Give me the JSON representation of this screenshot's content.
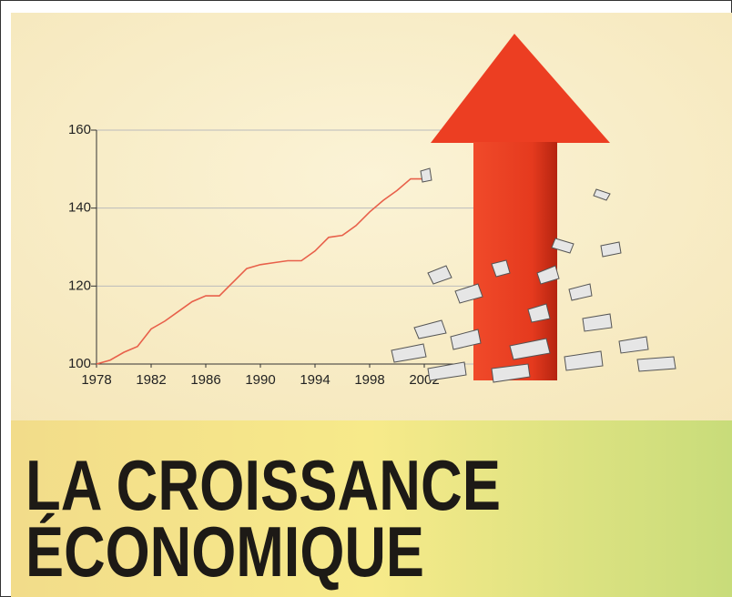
{
  "chart_data": {
    "type": "line",
    "title": [
      "LA CROISSANCE",
      "ÉCONOMIQUE"
    ],
    "x": [
      1978,
      1979,
      1980,
      1981,
      1982,
      1983,
      1984,
      1985,
      1986,
      1987,
      1988,
      1989,
      1990,
      1991,
      1992,
      1993,
      1994,
      1995,
      1996,
      1997,
      1998,
      1999,
      2000,
      2001,
      2002
    ],
    "series": [
      {
        "color": "#e8604a",
        "values": [
          100,
          101,
          103,
          104.5,
          109,
          111,
          113.5,
          116,
          117.5,
          117.5,
          121,
          124.5,
          125.5,
          126,
          126.5,
          126.5,
          129,
          132.5,
          133,
          135.5,
          139,
          142,
          144.5,
          147.5,
          147.5
        ]
      }
    ],
    "xlim": [
      1978,
      2005
    ],
    "xticks": [
      1978,
      1982,
      1986,
      1990,
      1994,
      1998,
      2002
    ],
    "ylim": [
      100,
      160
    ],
    "yticks": [
      100,
      120,
      140,
      160
    ],
    "grid": true
  }
}
